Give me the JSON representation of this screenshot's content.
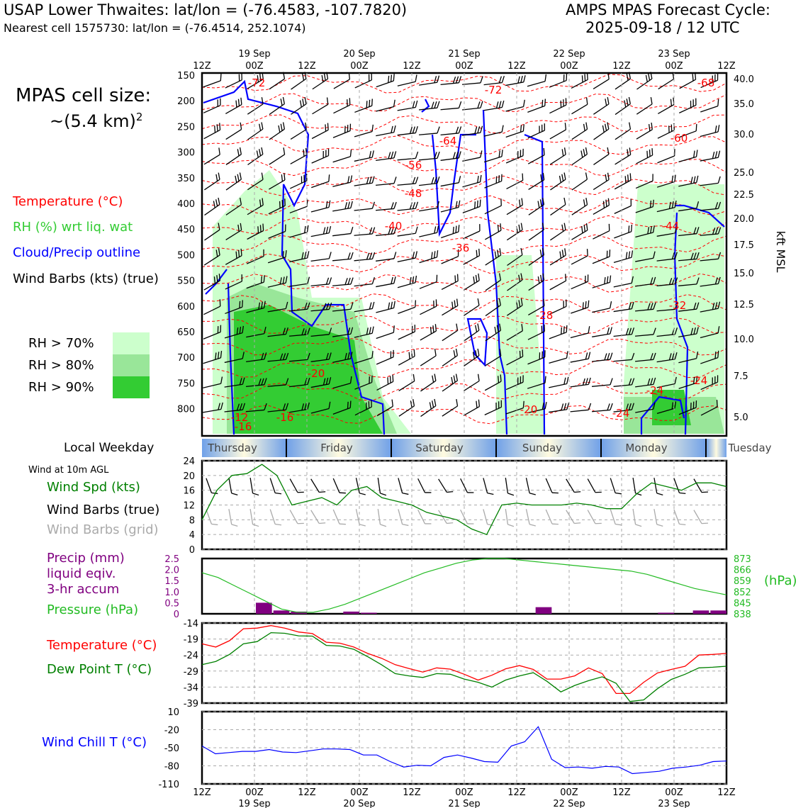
{
  "header": {
    "title": "USAP Lower Thwaites: lat/lon = (-76.4583, -107.7820)",
    "subtitle": "Nearest cell 1575730: lat/lon = (-76.4514, 252.1074)",
    "cycle_line1": "AMPS MPAS Forecast Cycle:",
    "cycle_line2": "2025-09-18 / 12 UTC"
  },
  "cell_size": {
    "line1": "MPAS cell size:",
    "line2": "~(5.4 km)",
    "exponent": "2"
  },
  "legend": {
    "temperature": "Temperature (°C)",
    "rh": "RH (%) wrt liq. wat",
    "cloud": "Cloud/Precip outline",
    "wind": "Wind Barbs (kts) (true)",
    "rh70": "RH > 70%",
    "rh80": "RH > 80%",
    "rh90": "RH > 90%"
  },
  "colors": {
    "temperature": "#ff0000",
    "rh_text": "#33cc33",
    "cloud": "#0000ff",
    "rh70": "#ccffcc",
    "rh80": "#99e699",
    "rh90": "#33cc33",
    "dewpoint": "#008000",
    "precip": "#800080",
    "windchill": "#0000ff",
    "wind_grid": "#aaaaaa"
  },
  "time_axis": {
    "ticks": [
      "12Z",
      "00Z",
      "12Z",
      "00Z",
      "12Z",
      "00Z",
      "12Z",
      "00Z",
      "12Z",
      "00Z",
      "12Z"
    ],
    "dates": [
      "19 Sep",
      "20 Sep",
      "21 Sep",
      "22 Sep",
      "23 Sep"
    ]
  },
  "weekdays": {
    "label": "Local Weekday",
    "days": [
      "Thursday",
      "Friday",
      "Saturday",
      "Sunday",
      "Monday",
      "Tuesday"
    ]
  },
  "chart_data": [
    {
      "type": "cross-section",
      "y_left_label": "",
      "y_left_ticks": [
        "150",
        "200",
        "250",
        "300",
        "350",
        "400",
        "450",
        "500",
        "550",
        "600",
        "650",
        "700",
        "750",
        "800"
      ],
      "y_right_label": "kft MSL",
      "y_right_ticks": [
        "40.0",
        "35.0",
        "30.0",
        "25.0",
        "22.5",
        "20.0",
        "17.5",
        "15.0",
        "12.5",
        "10.0",
        "7.5",
        "5.0"
      ],
      "temperature_labels": [
        "-72",
        "-72",
        "-68",
        "-64",
        "-60",
        "-56",
        "-48",
        "-40",
        "-44",
        "-36",
        "-28",
        "-32",
        "-20",
        "-24",
        "-24",
        "-12",
        "-16",
        "-16",
        "-20",
        "-24"
      ]
    },
    {
      "type": "line",
      "title": "Wind at 10m AGL",
      "series": [
        {
          "name": "Wind Spd (kts)",
          "values": [
            8,
            16,
            20,
            20.5,
            23,
            20,
            12,
            13,
            14,
            12,
            16,
            17,
            14,
            13,
            12,
            10,
            9,
            8,
            5.5,
            4,
            12,
            12.5,
            12,
            12,
            12,
            12.5,
            12,
            11,
            11,
            15,
            18,
            17,
            16,
            18,
            18,
            17
          ]
        }
      ],
      "legend_extra": [
        "Wind Barbs (true)",
        "Wind Barbs (grid)"
      ],
      "ylim": [
        0,
        24
      ],
      "yticks": [
        "0",
        "4",
        "8",
        "12",
        "16",
        "20",
        "24"
      ]
    },
    {
      "type": "bar+line",
      "series": [
        {
          "name": "Precip (mm) liquid eqiv. 3-hr accum",
          "x": [
            3,
            4,
            5,
            8,
            9,
            19,
            26,
            28,
            29
          ],
          "values": [
            0.5,
            0.15,
            0.1,
            0.1,
            0.05,
            0.3,
            0.05,
            0.15,
            0.15
          ]
        },
        {
          "name": "Pressure (hPa)",
          "values": [
            864,
            861,
            856,
            851,
            846,
            841,
            839,
            839,
            841,
            844,
            848,
            852,
            856,
            860,
            864,
            867,
            870,
            872,
            873,
            873,
            872,
            871,
            870,
            869,
            868,
            867,
            866,
            865,
            863,
            860,
            857,
            854,
            852,
            850
          ]
        }
      ],
      "ylim_left": [
        0,
        2.5
      ],
      "yticks_left": [
        "0",
        "0.5",
        "1.0",
        "1.5",
        "2.0",
        "2.5"
      ],
      "yticks_right": [
        "838",
        "845",
        "852",
        "859",
        "866",
        "873"
      ],
      "ylabel_right": "(hPa)",
      "legend": [
        "Precip (mm)",
        "liquid eqiv.",
        "3-hr accum",
        "Pressure (hPa)"
      ]
    },
    {
      "type": "line",
      "series": [
        {
          "name": "Temperature (°C)",
          "values": [
            -20.5,
            -21.5,
            -19.5,
            -15.8,
            -15.6,
            -14.8,
            -15.6,
            -16.8,
            -17.3,
            -20,
            -20.3,
            -21.5,
            -23.5,
            -25,
            -27,
            -28.2,
            -29.3,
            -28,
            -28.4,
            -30,
            -31.8,
            -30.3,
            -28.3,
            -27.3,
            -28.5,
            -31.5,
            -31.5,
            -30.5,
            -28,
            -29.8,
            -36,
            -36,
            -32.5,
            -29.6,
            -28.5,
            -27.5,
            -24,
            -23.8,
            -23.5
          ]
        },
        {
          "name": "Dew Point T (°C)",
          "values": [
            -27,
            -26,
            -23.8,
            -20.5,
            -19.8,
            -17,
            -17.2,
            -18,
            -18.1,
            -21,
            -21.2,
            -22.2,
            -24.5,
            -27,
            -29.8,
            -30.5,
            -31,
            -29.8,
            -30,
            -31.5,
            -32.5,
            -34,
            -31.8,
            -30.5,
            -29.5,
            -32.2,
            -35.5,
            -33.5,
            -32,
            -30.8,
            -32.8,
            -38.5,
            -38,
            -34.5,
            -31.6,
            -30,
            -28,
            -27.8,
            -27.5
          ]
        }
      ],
      "ylim": [
        -39,
        -14
      ],
      "yticks": [
        "-39",
        "-34",
        "-29",
        "-24",
        "-19",
        "-14"
      ]
    },
    {
      "type": "line",
      "series": [
        {
          "name": "Wind Chill T (°C)",
          "values": [
            -47,
            -60,
            -58,
            -56,
            -56,
            -53,
            -57,
            -58,
            -55,
            -52,
            -52,
            -53,
            -62,
            -62,
            -73,
            -82,
            -79,
            -80,
            -66,
            -62,
            -67,
            -73,
            -74,
            -47,
            -40,
            -15,
            -69,
            -83,
            -82,
            -84,
            -81,
            -82,
            -93,
            -91,
            -89,
            -84,
            -82,
            -79,
            -73,
            -72
          ]
        }
      ],
      "ylim": [
        -110,
        10
      ],
      "yticks": [
        "-110",
        "-80",
        "-50",
        "-20",
        "10"
      ]
    }
  ]
}
